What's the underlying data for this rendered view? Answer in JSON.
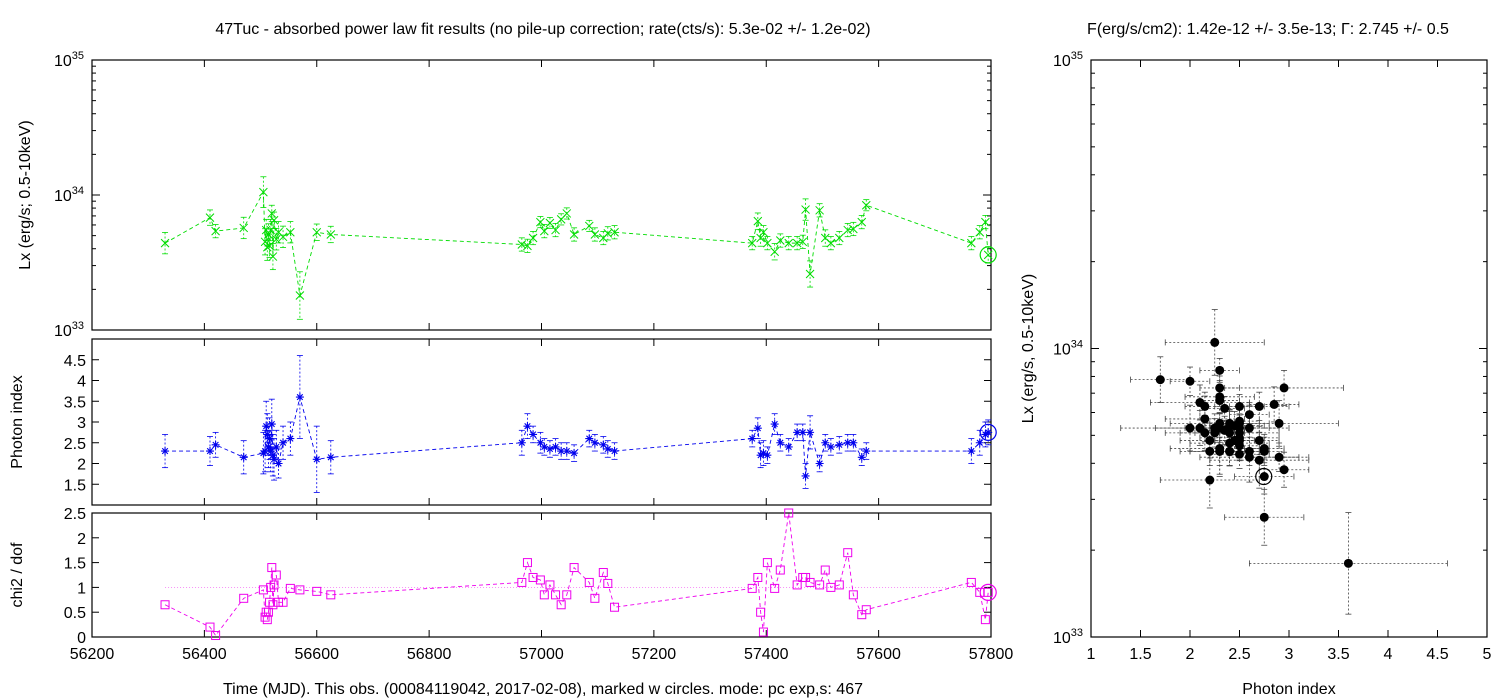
{
  "titles": {
    "left": "47Tuc  - absorbed power law fit results (no pile-up correction; rate(cts/s): 5.3e-02 +/- 1.2e-02)",
    "right": "F(erg/s/cm2): 1.42e-12 +/- 3.5e-13; Γ: 2.745 +/- 0.5"
  },
  "x_axis_label": "Time (MJD). This obs. (00084119042, 2017-02-08), marked w circles. mode: pc exp,s: 467",
  "colors": {
    "lx": "#00dd00",
    "gamma": "#0000ee",
    "chi2": "#ee00ee",
    "scatter": "#000000"
  },
  "chart_data": [
    {
      "type": "line",
      "id": "lx_vs_time",
      "ylabel": "Lx (erg/s; 0.5-10keV)",
      "xlim": [
        56200,
        57800
      ],
      "ylim": [
        1e+33,
        1e+35
      ],
      "yscale": "log",
      "x_ticks": [
        56200,
        56400,
        56600,
        56800,
        57000,
        57200,
        57400,
        57600,
        57800
      ],
      "y_ticks": [
        {
          "value": 1e+33,
          "base": "10",
          "exp": "33"
        },
        {
          "value": 1e+34,
          "base": "10",
          "exp": "34"
        },
        {
          "value": 1e+35,
          "base": "10",
          "exp": "35"
        }
      ],
      "x": [
        56330,
        56410,
        56420,
        56470,
        56505,
        56508,
        56510,
        56512,
        56514,
        56516,
        56518,
        56520,
        56522,
        56524,
        56528,
        56532,
        56540,
        56553,
        56570,
        56600,
        56625,
        56965,
        56975,
        56985,
        56998,
        57005,
        57015,
        57025,
        57035,
        57045,
        57058,
        57085,
        57095,
        57110,
        57118,
        57130,
        57375,
        57385,
        57390,
        57395,
        57402,
        57415,
        57425,
        57440,
        57455,
        57465,
        57470,
        57478,
        57495,
        57505,
        57515,
        57530,
        57545,
        57555,
        57570,
        57578,
        57765,
        57780,
        57790,
        57795
      ],
      "y": [
        4.4e+33,
        6.8e+33,
        5.4e+33,
        5.7e+33,
        1.05e+34,
        4.5e+33,
        5.5e+33,
        4.1e+33,
        5.1e+33,
        4.2e+33,
        5.5e+33,
        7.3e+33,
        3.5e+33,
        6.5e+33,
        4.7e+33,
        5.3e+33,
        4.9e+33,
        5.3e+33,
        1.8e+33,
        5.3e+33,
        5.1e+33,
        4.3e+33,
        4.2e+33,
        4.8e+33,
        6.3e+33,
        5.4e+33,
        6.2e+33,
        5.5e+33,
        6.6e+33,
        7.3e+33,
        5.1e+33,
        5.9e+33,
        5.1e+33,
        4.8e+33,
        5.2e+33,
        5.3e+33,
        4.4e+33,
        6.4e+33,
        4.8e+33,
        5.3e+33,
        4.4e+33,
        3.8e+33,
        4.6e+33,
        4.4e+33,
        4.4e+33,
        4.5e+33,
        7.8e+33,
        2.6e+33,
        7.7e+33,
        4.8e+33,
        4.4e+33,
        4.8e+33,
        5.5e+33,
        5.6e+33,
        6.3e+33,
        8.4e+33,
        4.4e+33,
        5.3e+33,
        6.3e+33,
        3.6e+33
      ],
      "yerr_factor": [
        1.2,
        1.14,
        1.12,
        1.2,
        1.3,
        1.25,
        1.2,
        1.25,
        1.2,
        1.22,
        1.2,
        1.15,
        1.25,
        1.15,
        1.2,
        1.2,
        1.2,
        1.2,
        1.5,
        1.15,
        1.15,
        1.12,
        1.12,
        1.12,
        1.1,
        1.12,
        1.1,
        1.12,
        1.1,
        1.1,
        1.12,
        1.1,
        1.12,
        1.12,
        1.12,
        1.12,
        1.12,
        1.15,
        1.15,
        1.12,
        1.12,
        1.15,
        1.12,
        1.12,
        1.12,
        1.12,
        1.2,
        1.25,
        1.12,
        1.15,
        1.12,
        1.12,
        1.12,
        1.12,
        1.12,
        1.1,
        1.12,
        1.12,
        1.12,
        1.15
      ],
      "current": {
        "x": 57795,
        "y": 3.6e+33
      }
    },
    {
      "type": "line",
      "id": "gamma_vs_time",
      "ylabel": "Photon index",
      "xlim": [
        56200,
        57800
      ],
      "ylim": [
        1,
        5
      ],
      "y_ticks": [
        1.5,
        2,
        2.5,
        3,
        3.5,
        4,
        4.5
      ],
      "x": [
        56330,
        56410,
        56420,
        56470,
        56505,
        56508,
        56510,
        56512,
        56514,
        56516,
        56518,
        56520,
        56522,
        56524,
        56528,
        56532,
        56540,
        56553,
        56570,
        56600,
        56625,
        56965,
        56975,
        56985,
        56998,
        57005,
        57015,
        57025,
        57035,
        57045,
        57058,
        57085,
        57095,
        57110,
        57118,
        57130,
        57375,
        57385,
        57390,
        57395,
        57402,
        57415,
        57425,
        57440,
        57455,
        57465,
        57470,
        57478,
        57495,
        57505,
        57515,
        57530,
        57545,
        57555,
        57570,
        57578,
        57765,
        57780,
        57790,
        57795
      ],
      "y": [
        2.3,
        2.3,
        2.45,
        2.15,
        2.25,
        2.3,
        2.9,
        2.7,
        2.4,
        2.6,
        2.3,
        2.95,
        2.2,
        2.1,
        2.4,
        2.0,
        2.5,
        2.6,
        3.6,
        2.1,
        2.15,
        2.5,
        2.9,
        2.7,
        2.5,
        2.4,
        2.35,
        2.4,
        2.3,
        2.3,
        2.25,
        2.6,
        2.5,
        2.45,
        2.35,
        2.3,
        2.6,
        2.85,
        2.2,
        2.25,
        2.2,
        2.95,
        2.5,
        2.4,
        2.75,
        2.75,
        1.7,
        2.75,
        2.0,
        2.5,
        2.4,
        2.45,
        2.5,
        2.5,
        2.15,
        2.3,
        2.3,
        2.5,
        2.7,
        2.75
      ],
      "yerr": [
        0.4,
        0.35,
        0.3,
        0.4,
        0.5,
        0.5,
        0.6,
        0.5,
        0.5,
        0.5,
        0.5,
        0.6,
        0.5,
        0.5,
        0.4,
        0.35,
        0.4,
        0.4,
        1.0,
        0.8,
        0.4,
        0.3,
        0.3,
        0.2,
        0.25,
        0.2,
        0.2,
        0.2,
        0.2,
        0.2,
        0.2,
        0.2,
        0.2,
        0.2,
        0.2,
        0.2,
        0.2,
        0.25,
        0.3,
        0.3,
        0.2,
        0.25,
        0.2,
        0.2,
        0.2,
        0.2,
        0.3,
        0.4,
        0.2,
        0.2,
        0.2,
        0.2,
        0.2,
        0.2,
        0.2,
        0.2,
        0.3,
        0.3,
        0.3,
        0.3
      ],
      "current": {
        "x": 57795,
        "y": 2.75
      }
    },
    {
      "type": "line",
      "id": "chi2_vs_time",
      "ylabel": "chi2 / dof",
      "xlabel": "Time (MJD). This obs. (00084119042, 2017-02-08), marked w circles. mode: pc exp,s: 467",
      "xlim": [
        56200,
        57800
      ],
      "ylim": [
        0,
        2.5
      ],
      "y_ticks": [
        0,
        0.5,
        1,
        1.5,
        2,
        2.5
      ],
      "reference_line": 1.0,
      "x": [
        56330,
        56410,
        56420,
        56470,
        56505,
        56508,
        56510,
        56512,
        56514,
        56516,
        56518,
        56520,
        56522,
        56524,
        56528,
        56532,
        56540,
        56553,
        56570,
        56600,
        56625,
        56965,
        56975,
        56985,
        56998,
        57005,
        57015,
        57025,
        57035,
        57045,
        57058,
        57085,
        57095,
        57110,
        57118,
        57130,
        57375,
        57385,
        57390,
        57395,
        57402,
        57415,
        57425,
        57440,
        57455,
        57465,
        57470,
        57478,
        57495,
        57505,
        57515,
        57530,
        57545,
        57555,
        57570,
        57578,
        57765,
        57780,
        57790,
        57795
      ],
      "y": [
        0.65,
        0.2,
        0.03,
        0.78,
        0.95,
        0.4,
        0.5,
        0.35,
        0.5,
        0.7,
        1.0,
        1.4,
        0.65,
        1.05,
        1.25,
        0.7,
        0.7,
        0.98,
        0.95,
        0.92,
        0.85,
        1.1,
        1.5,
        1.2,
        1.15,
        0.85,
        1.05,
        0.85,
        0.65,
        0.85,
        1.4,
        1.1,
        0.78,
        1.3,
        1.08,
        0.6,
        0.98,
        1.2,
        0.5,
        0.1,
        1.5,
        0.98,
        1.35,
        2.5,
        1.05,
        1.2,
        1.2,
        1.1,
        1.05,
        1.35,
        1.0,
        1.05,
        1.7,
        0.85,
        0.45,
        0.55,
        1.1,
        0.9,
        0.35,
        0.9
      ],
      "current": {
        "x": 57795,
        "y": 0.9
      }
    },
    {
      "type": "scatter",
      "id": "lx_vs_gamma",
      "xlabel": "Photon index",
      "ylabel": "Lx (erg/s, 0.5-10keV)",
      "xlim": [
        1,
        5
      ],
      "ylim": [
        1e+33,
        1e+35
      ],
      "yscale": "log",
      "x_ticks": [
        1,
        1.5,
        2,
        2.5,
        3,
        3.5,
        4,
        4.5,
        5
      ],
      "y_ticks": [
        {
          "value": 1e+33,
          "base": "10",
          "exp": "33"
        },
        {
          "value": 1e+34,
          "base": "10",
          "exp": "34"
        },
        {
          "value": 1e+35,
          "base": "10",
          "exp": "35"
        }
      ],
      "x": [
        2.3,
        2.3,
        2.45,
        2.15,
        2.25,
        2.3,
        2.9,
        2.7,
        2.4,
        2.6,
        2.3,
        2.95,
        2.2,
        2.1,
        2.4,
        2.0,
        2.5,
        2.6,
        3.6,
        2.1,
        2.15,
        2.5,
        2.9,
        2.7,
        2.5,
        2.4,
        2.35,
        2.4,
        2.3,
        2.3,
        2.25,
        2.6,
        2.5,
        2.45,
        2.35,
        2.3,
        2.6,
        2.85,
        2.2,
        2.25,
        2.2,
        2.95,
        2.5,
        2.4,
        2.75,
        2.75,
        1.7,
        2.75,
        2.0,
        2.5,
        2.4,
        2.45,
        2.5,
        2.5,
        2.15,
        2.3,
        2.3,
        2.5,
        2.7,
        2.75
      ],
      "y": [
        4.4e+33,
        6.8e+33,
        5.4e+33,
        5.7e+33,
        1.05e+34,
        4.5e+33,
        5.5e+33,
        4.1e+33,
        5.1e+33,
        4.2e+33,
        5.5e+33,
        7.3e+33,
        3.5e+33,
        6.5e+33,
        4.7e+33,
        5.3e+33,
        4.9e+33,
        5.3e+33,
        1.8e+33,
        5.3e+33,
        5.1e+33,
        4.3e+33,
        4.2e+33,
        4.8e+33,
        6.3e+33,
        5.4e+33,
        6.2e+33,
        5.5e+33,
        6.6e+33,
        7.3e+33,
        5.1e+33,
        5.9e+33,
        5.1e+33,
        4.8e+33,
        5.2e+33,
        5.3e+33,
        4.4e+33,
        6.4e+33,
        4.8e+33,
        5.3e+33,
        4.4e+33,
        3.8e+33,
        4.6e+33,
        4.4e+33,
        4.4e+33,
        4.5e+33,
        7.8e+33,
        2.6e+33,
        7.7e+33,
        4.8e+33,
        4.4e+33,
        4.8e+33,
        5.5e+33,
        5.6e+33,
        6.3e+33,
        8.4e+33,
        4.4e+33,
        5.3e+33,
        6.3e+33,
        3.6e+33
      ],
      "current": {
        "x": 2.745,
        "y": 3.6e+33
      }
    }
  ]
}
